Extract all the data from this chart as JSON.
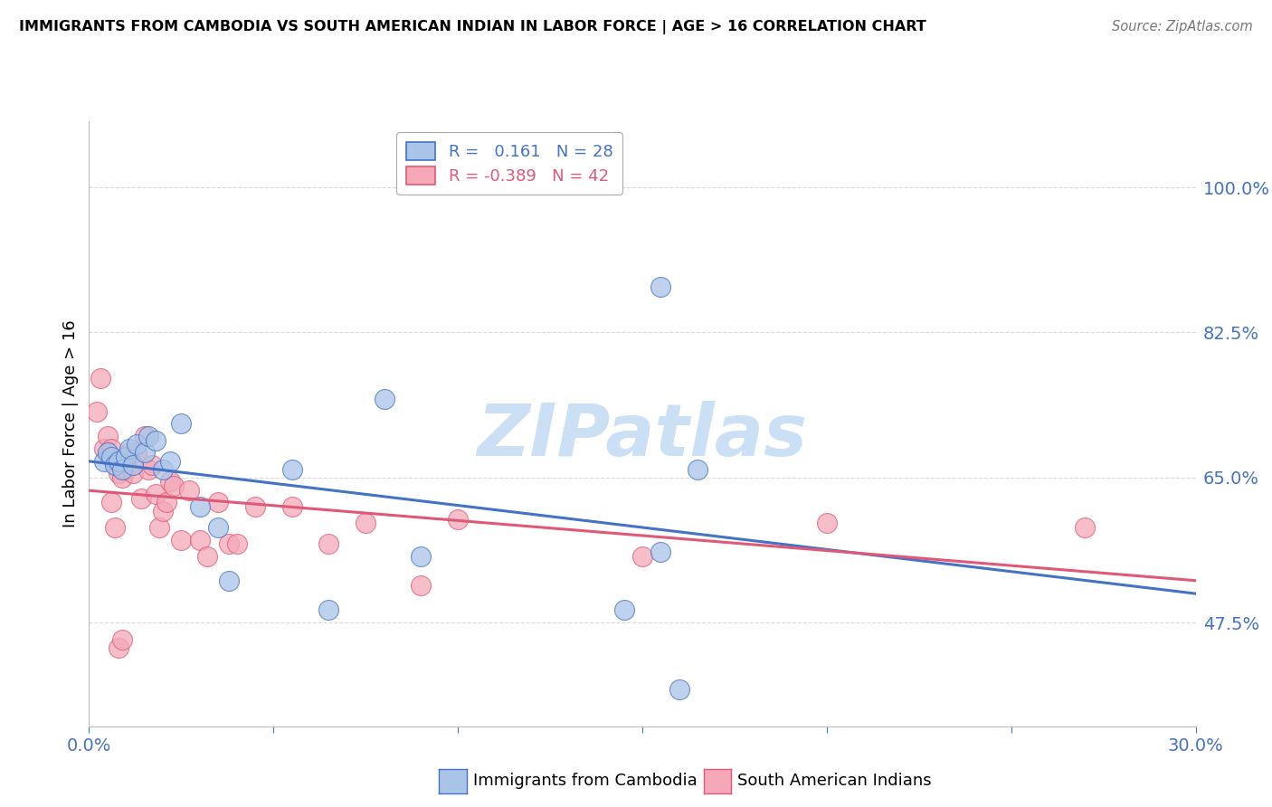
{
  "title": "IMMIGRANTS FROM CAMBODIA VS SOUTH AMERICAN INDIAN IN LABOR FORCE | AGE > 16 CORRELATION CHART",
  "source": "Source: ZipAtlas.com",
  "ylabel": "In Labor Force | Age > 16",
  "xlim": [
    0.0,
    0.3
  ],
  "ylim": [
    0.35,
    1.08
  ],
  "xticks": [
    0.0,
    0.05,
    0.1,
    0.15,
    0.2,
    0.25,
    0.3
  ],
  "xticklabels": [
    "0.0%",
    "",
    "",
    "",
    "",
    "",
    "30.0%"
  ],
  "yticks": [
    0.475,
    0.65,
    0.825,
    1.0
  ],
  "yticklabels": [
    "47.5%",
    "65.0%",
    "82.5%",
    "100.0%"
  ],
  "cambodia_color": "#aac4e8",
  "cambodia_line_color": "#4472c4",
  "cambodia_x": [
    0.004,
    0.005,
    0.006,
    0.007,
    0.008,
    0.009,
    0.01,
    0.011,
    0.012,
    0.013,
    0.015,
    0.016,
    0.018,
    0.02,
    0.022,
    0.025,
    0.03,
    0.035,
    0.038,
    0.055,
    0.065,
    0.08,
    0.09,
    0.145,
    0.155,
    0.165,
    0.155,
    0.16
  ],
  "cambodia_y": [
    0.67,
    0.68,
    0.675,
    0.665,
    0.67,
    0.66,
    0.675,
    0.685,
    0.665,
    0.69,
    0.68,
    0.7,
    0.695,
    0.66,
    0.67,
    0.715,
    0.615,
    0.59,
    0.525,
    0.66,
    0.49,
    0.745,
    0.555,
    0.49,
    0.88,
    0.66,
    0.56,
    0.395
  ],
  "sai_color": "#f4a8b8",
  "sai_line_color": "#e05878",
  "sai_x": [
    0.002,
    0.003,
    0.004,
    0.005,
    0.006,
    0.007,
    0.008,
    0.009,
    0.01,
    0.011,
    0.012,
    0.013,
    0.014,
    0.015,
    0.016,
    0.017,
    0.018,
    0.019,
    0.02,
    0.021,
    0.022,
    0.023,
    0.025,
    0.027,
    0.03,
    0.032,
    0.035,
    0.038,
    0.04,
    0.045,
    0.055,
    0.065,
    0.075,
    0.09,
    0.1,
    0.15,
    0.2,
    0.27,
    0.006,
    0.007,
    0.008,
    0.009
  ],
  "sai_y": [
    0.73,
    0.77,
    0.685,
    0.7,
    0.685,
    0.67,
    0.655,
    0.65,
    0.66,
    0.68,
    0.655,
    0.68,
    0.625,
    0.7,
    0.66,
    0.665,
    0.63,
    0.59,
    0.61,
    0.62,
    0.645,
    0.64,
    0.575,
    0.635,
    0.575,
    0.555,
    0.62,
    0.57,
    0.57,
    0.615,
    0.615,
    0.57,
    0.595,
    0.52,
    0.6,
    0.555,
    0.595,
    0.59,
    0.62,
    0.59,
    0.445,
    0.455
  ],
  "watermark": "ZIPatlas",
  "watermark_color": "#cce0f5",
  "legend_v1": "0.161",
  "legend_n1": "N = 28",
  "legend_r2": "-0.389",
  "legend_n2": "N = 42",
  "background_color": "#ffffff",
  "grid_color": "#d8d8d8"
}
